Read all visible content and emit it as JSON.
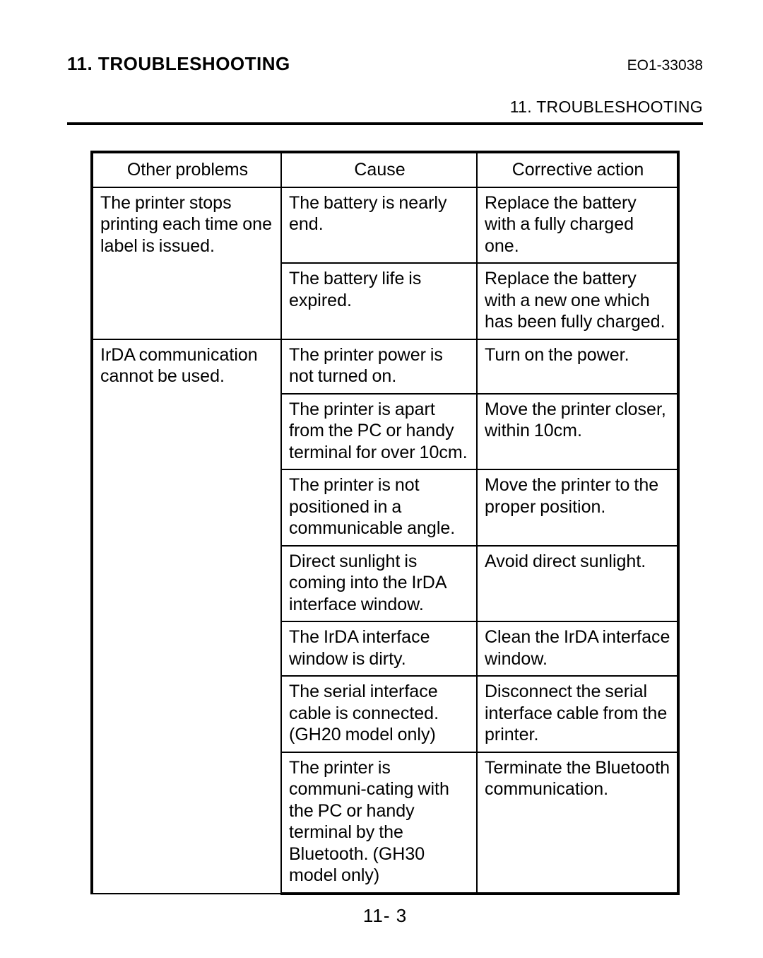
{
  "header": {
    "section_title": "11. TROUBLESHOOTING",
    "doc_id": "EO1-33038",
    "subheader": "11. TROUBLESHOOTING"
  },
  "table": {
    "columns": [
      "Other problems",
      "Cause",
      "Corrective action"
    ],
    "groups": [
      {
        "problem": "The printer stops printing each time one label is issued.",
        "rows": [
          {
            "cause": "The battery is nearly end.",
            "action": "Replace the battery with a fully charged one."
          },
          {
            "cause": "The battery life is expired.",
            "action": "Replace the battery with a new one which has been fully charged."
          }
        ]
      },
      {
        "problem": "IrDA communication cannot be used.",
        "rows": [
          {
            "cause": "The printer power is not turned on.",
            "action": "Turn on the power."
          },
          {
            "cause": "The printer is apart from the PC or handy terminal for over 10cm.",
            "action": "Move the printer closer, within 10cm."
          },
          {
            "cause": "The printer is not positioned in a communicable angle.",
            "action": "Move the printer to the proper position."
          },
          {
            "cause": "Direct sunlight is coming into the IrDA interface window.",
            "action": "Avoid direct sunlight."
          },
          {
            "cause": "The IrDA interface window is dirty.",
            "action": "Clean the IrDA interface window."
          },
          {
            "cause": "The serial interface cable is connected. (GH20 model only)",
            "action": "Disconnect the serial interface cable from the printer."
          },
          {
            "cause": "The printer is communi-cating with the PC or handy terminal by the Bluetooth. (GH30 model only)",
            "action": "Terminate the Bluetooth communication."
          }
        ]
      }
    ]
  },
  "page_number": "11- 3"
}
